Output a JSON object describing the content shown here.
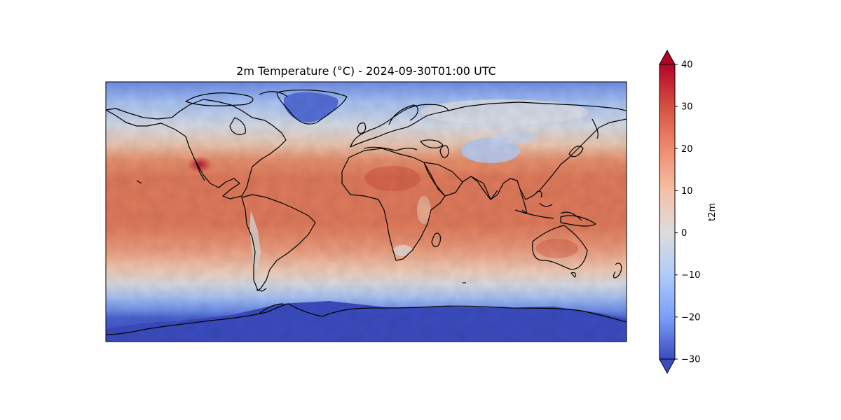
{
  "chart_data": {
    "type": "heatmap",
    "title": "2m Temperature (°C) - 2024-09-30T01:00 UTC",
    "projection": "PlateCarree",
    "extent": {
      "lon": [
        -180,
        180
      ],
      "lat": [
        -90,
        90
      ]
    },
    "coastlines": true,
    "colormap": "coolwarm",
    "colorbar": {
      "label": "t2m",
      "vmin": -30,
      "vmax": 40,
      "extend": "both",
      "orientation": "vertical",
      "ticks": [
        {
          "value": 40,
          "label": "40"
        },
        {
          "value": 30,
          "label": "30"
        },
        {
          "value": 20,
          "label": "20"
        },
        {
          "value": 10,
          "label": "10"
        },
        {
          "value": 0,
          "label": "0"
        },
        {
          "value": -10,
          "label": "−10"
        },
        {
          "value": -20,
          "label": "−20"
        },
        {
          "value": -30,
          "label": "−30"
        }
      ]
    }
  },
  "colors": {
    "cold": "#3b4cc0",
    "neutral": "#dddddd",
    "warm": "#b40426",
    "coastline": "#000000"
  }
}
